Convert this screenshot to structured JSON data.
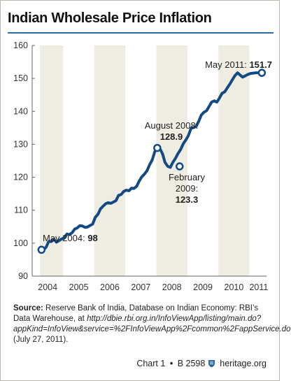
{
  "title": "Indian Wholesale Price Inflation",
  "chart_data": {
    "type": "line",
    "title": "Indian Wholesale Price Inflation",
    "xlabel": "",
    "ylabel": "",
    "xlim": [
      2004.0,
      2011.55
    ],
    "ylim": [
      90,
      160
    ],
    "yticks": [
      90,
      100,
      110,
      120,
      130,
      140,
      150,
      160
    ],
    "xticks": [
      {
        "label": "2004",
        "x": 2004.5
      },
      {
        "label": "2005",
        "x": 2005.5
      },
      {
        "label": "2006",
        "x": 2006.5
      },
      {
        "label": "2007",
        "x": 2007.5
      },
      {
        "label": "2008",
        "x": 2008.5
      },
      {
        "label": "2009",
        "x": 2009.5
      },
      {
        "label": "2010",
        "x": 2010.5
      },
      {
        "label": "2011",
        "x": 2011.3
      }
    ],
    "shaded_years": [
      [
        2004.25,
        2005.0
      ],
      [
        2006.0,
        2007.0
      ],
      [
        2008.0,
        2009.0
      ],
      [
        2010.0,
        2011.0
      ]
    ],
    "grid": false,
    "series": [
      {
        "x": [
          2004.37,
          2004.45,
          2004.53,
          2004.62,
          2004.7,
          2004.78,
          2004.87,
          2004.95,
          2005.03,
          2005.12,
          2005.2,
          2005.28,
          2005.37,
          2005.45,
          2005.53,
          2005.62,
          2005.7,
          2005.78,
          2005.87,
          2005.95,
          2006.03,
          2006.12,
          2006.2,
          2006.28,
          2006.37,
          2006.45,
          2006.53,
          2006.62,
          2006.7,
          2006.78,
          2006.87,
          2006.95,
          2007.03,
          2007.12,
          2007.2,
          2007.28,
          2007.37,
          2007.45,
          2007.53,
          2007.62,
          2007.7,
          2007.78,
          2007.87,
          2007.95,
          2008.03,
          2008.12,
          2008.2,
          2008.28,
          2008.37,
          2008.45,
          2008.53,
          2008.62,
          2008.7,
          2008.78,
          2008.87,
          2008.95,
          2009.03,
          2009.12,
          2009.2,
          2009.28,
          2009.37,
          2009.45,
          2009.53,
          2009.62,
          2009.7,
          2009.78,
          2009.87,
          2009.95,
          2010.03,
          2010.12,
          2010.2,
          2010.28,
          2010.37,
          2010.45,
          2010.53,
          2010.62,
          2010.7,
          2010.78,
          2010.87,
          2010.95,
          2011.03,
          2011.12,
          2011.2,
          2011.28,
          2011.37
        ],
        "values": [
          98.0,
          98.8,
          100.5,
          100.5,
          101.2,
          100.3,
          100.8,
          101.3,
          101.6,
          102.8,
          102.6,
          103.1,
          104.3,
          104.6,
          105.3,
          105.2,
          104.8,
          104.9,
          105.4,
          105.8,
          107.8,
          108.8,
          110.4,
          111.2,
          112.0,
          112.3,
          112.1,
          112.5,
          112.9,
          114.5,
          114.8,
          115.7,
          116.1,
          115.9,
          116.7,
          116.6,
          117.3,
          118.9,
          120.1,
          121.0,
          122.0,
          123.7,
          125.3,
          127.8,
          128.9,
          128.6,
          127.1,
          124.5,
          123.3,
          123.0,
          124.5,
          125.8,
          127.2,
          128.4,
          130.2,
          131.3,
          132.6,
          134.9,
          135.1,
          135.4,
          137.1,
          138.9,
          139.7,
          140.2,
          141.5,
          142.8,
          143.2,
          142.8,
          144.0,
          145.5,
          145.9,
          147.0,
          148.3,
          149.6,
          150.8,
          151.7,
          151.0,
          150.4,
          150.8,
          151.2,
          151.5,
          151.6,
          151.7,
          151.7,
          151.7
        ]
      }
    ],
    "markers": [
      {
        "x": 2004.3,
        "value": 98
      },
      {
        "x": 2008.03,
        "value": 128.9
      },
      {
        "x": 2008.75,
        "value": 123.3
      },
      {
        "x": 2011.4,
        "value": 151.7
      }
    ],
    "annotations": [
      {
        "lines": [
          "May 2004: "
        ],
        "value": "98"
      },
      {
        "lines": [
          "August 2008:"
        ],
        "value": "128.9"
      },
      {
        "lines": [
          "February",
          "2009:"
        ],
        "value": "123.3"
      },
      {
        "lines": [
          "May 2011: "
        ],
        "value": "151.7"
      }
    ],
    "colors": {
      "line": "#144a83",
      "shade": "#efece1",
      "axis": "#666666"
    }
  },
  "source": {
    "label": "Source:",
    "text": "Reserve Bank of India, Database on Indian Economy: RBI’s Data Warehouse, at",
    "url": "http://dbie.rbi.org.in/InfoViewApp/listing/main.do?appKind=InfoView&service=%2FInfoViewApp%2Fcommon%2FappService.do",
    "date": "(July 27, 2011)."
  },
  "credit": {
    "chart": "Chart 1",
    "sep": "•",
    "code": "B 2598",
    "site": "heritage.org",
    "logo_icon": "heritage-shield-icon"
  }
}
